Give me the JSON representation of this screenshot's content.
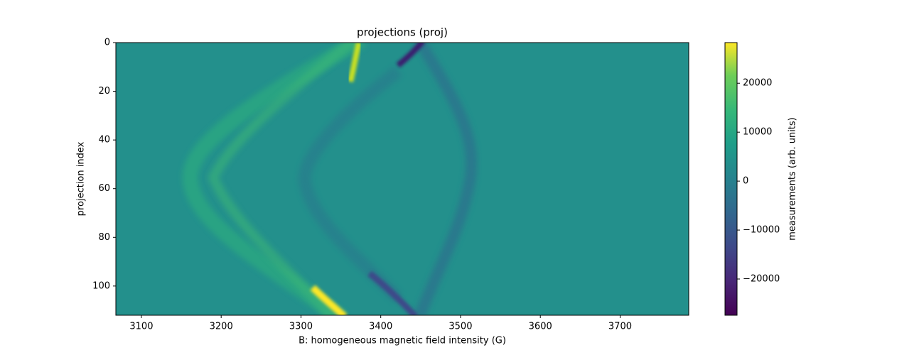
{
  "chart_data": {
    "type": "image",
    "title": "projections (proj)",
    "x_label": "B: homogeneous magnetic field intensity (G)",
    "y_label": "projection index",
    "xlim": [
      3068,
      3786
    ],
    "xticks": [
      3100,
      3200,
      3300,
      3400,
      3500,
      3600,
      3700
    ],
    "ylim": [
      112,
      0
    ],
    "yticks": [
      0,
      20,
      40,
      60,
      80,
      100
    ],
    "colormap": "viridis",
    "colorbar": {
      "label": "measurements (arb. units)",
      "clim": [
        -27400,
        28300
      ],
      "ticks": [
        {
          "value": -20000,
          "label": "−20000"
        },
        {
          "value": -10000,
          "label": "−10000"
        },
        0,
        10000,
        20000
      ]
    }
  }
}
